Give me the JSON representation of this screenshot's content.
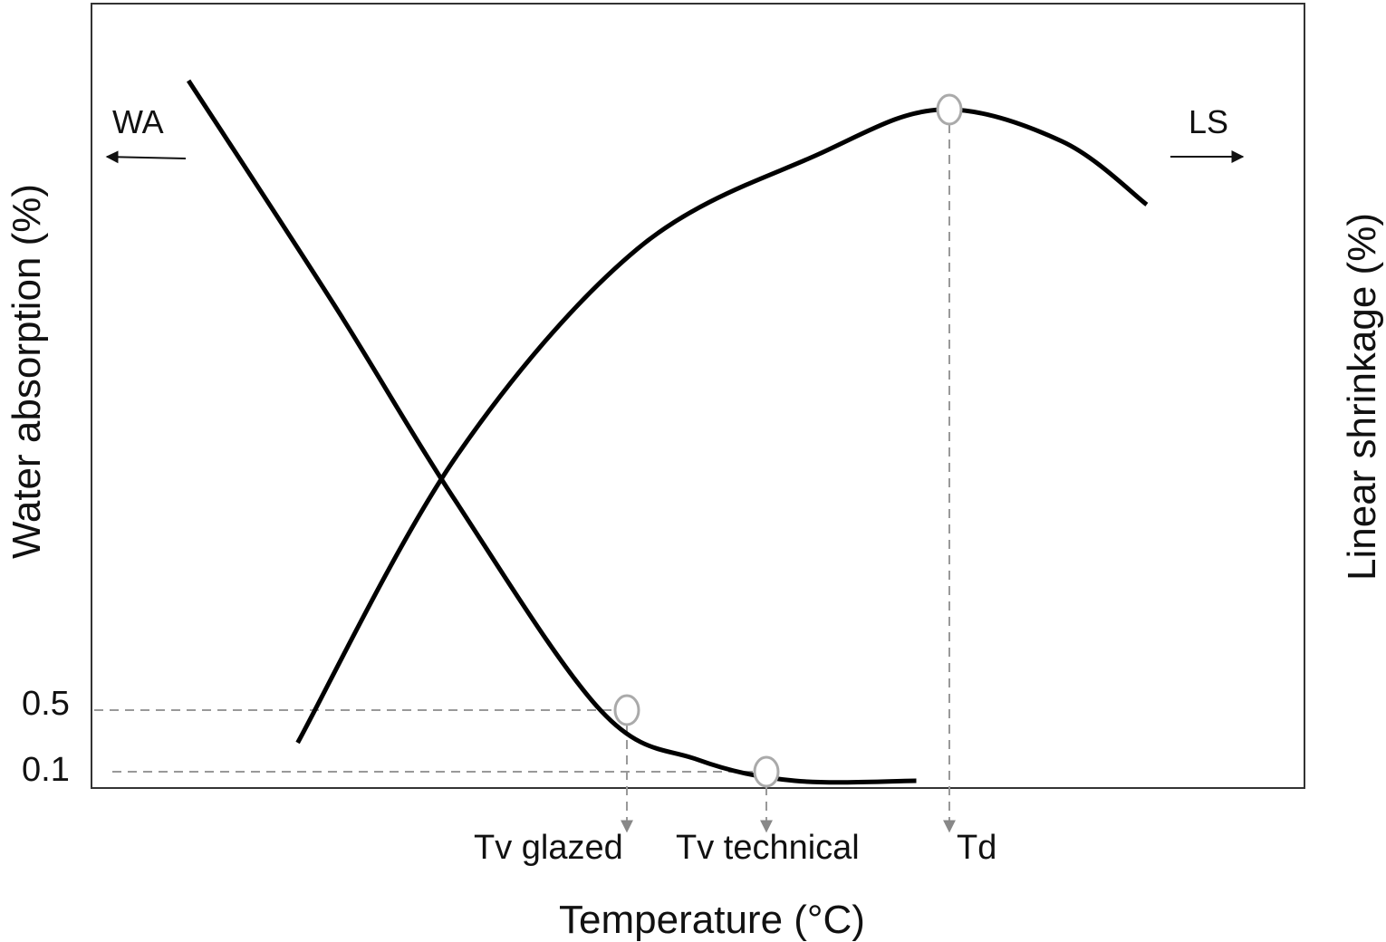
{
  "chart_data": {
    "type": "line",
    "xlabel": "Temperature (°C)",
    "ylabel_left": "Water absorption (%)",
    "ylabel_right": "Linear shrinkage (%)",
    "y_ticks_left": [
      "0.5",
      "0.1"
    ],
    "series": [
      {
        "name": "WA",
        "axis": "left",
        "direction": "left",
        "points": [
          [
            0.08,
            1.0
          ],
          [
            0.2,
            0.68
          ],
          [
            0.3,
            0.4
          ],
          [
            0.42,
            0.1
          ],
          [
            0.5,
            0.03
          ],
          [
            0.58,
            0.0
          ],
          [
            0.68,
            0.0
          ]
        ]
      },
      {
        "name": "LS",
        "axis": "right",
        "direction": "right",
        "points": [
          [
            0.17,
            0.0
          ],
          [
            0.3,
            0.45
          ],
          [
            0.45,
            0.78
          ],
          [
            0.6,
            0.93
          ],
          [
            0.7,
            1.0
          ],
          [
            0.8,
            0.95
          ],
          [
            0.87,
            0.85
          ]
        ]
      }
    ],
    "markers": [
      {
        "series": "WA",
        "x": 0.44,
        "y_label": "0.5",
        "x_label": "Tv glazed"
      },
      {
        "series": "WA",
        "x": 0.55,
        "y_label": "0.1",
        "x_label": "Tv technical"
      },
      {
        "series": "LS",
        "x": 0.71,
        "x_label": "Td"
      }
    ],
    "grid": false,
    "colors": {
      "line": "#000000",
      "marker": "#aaaaaa",
      "guide": "#999999"
    }
  }
}
